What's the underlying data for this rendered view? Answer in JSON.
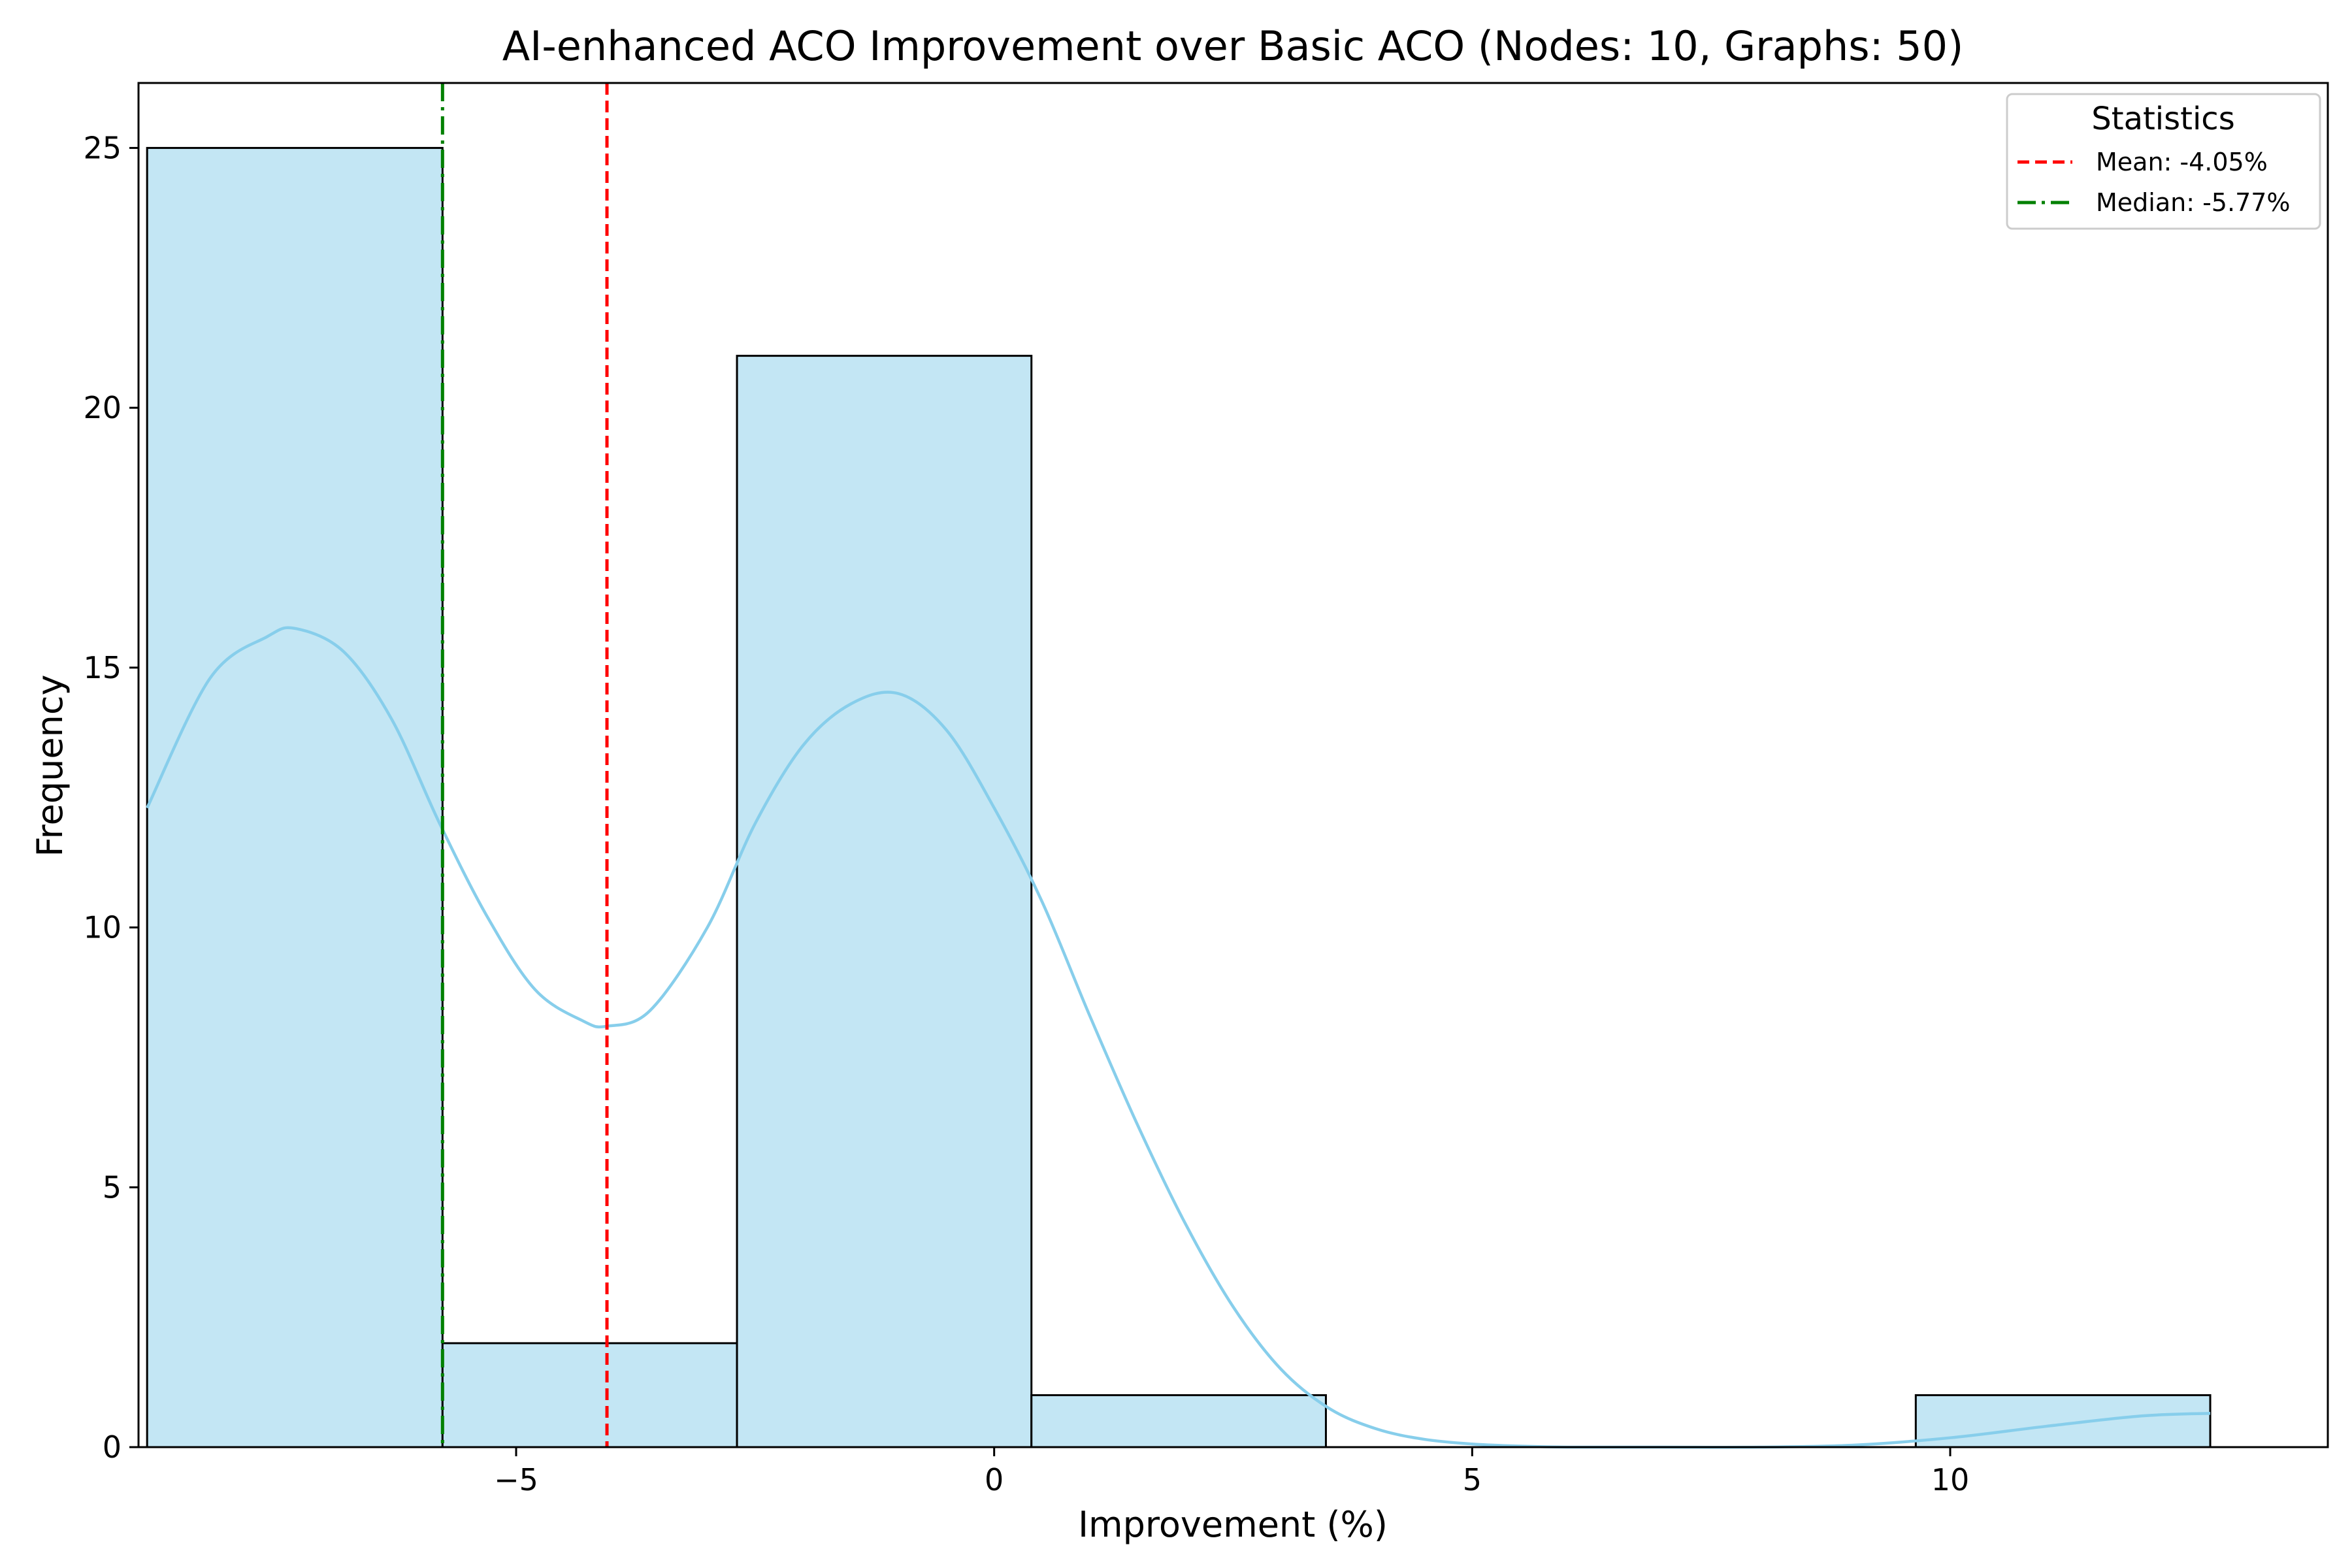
{
  "chart_data": {
    "type": "bar",
    "title": "AI-enhanced ACO Improvement over Basic ACO (Nodes: 10, Graphs: 50)",
    "xlabel": "Improvement (%)",
    "ylabel": "Frequency",
    "xlim": [
      -8.95,
      13.95
    ],
    "ylim": [
      0,
      26.25
    ],
    "xticks": [
      {
        "value": -5,
        "label": "−5"
      },
      {
        "value": 0,
        "label": "0"
      },
      {
        "value": 5,
        "label": "5"
      },
      {
        "value": 10,
        "label": "10"
      }
    ],
    "yticks": [
      {
        "value": 0,
        "label": "0"
      },
      {
        "value": 5,
        "label": "5"
      },
      {
        "value": 10,
        "label": "10"
      },
      {
        "value": 15,
        "label": "15"
      },
      {
        "value": 20,
        "label": "20"
      },
      {
        "value": 25,
        "label": "25"
      }
    ],
    "bins": [
      {
        "x0": -8.86,
        "x1": -5.77,
        "count": 25
      },
      {
        "x0": -5.77,
        "x1": -2.69,
        "count": 2
      },
      {
        "x0": -2.69,
        "x1": 0.39,
        "count": 21
      },
      {
        "x0": 0.39,
        "x1": 3.47,
        "count": 1
      },
      {
        "x0": 3.47,
        "x1": 6.56,
        "count": 0
      },
      {
        "x0": 6.56,
        "x1": 9.64,
        "count": 0
      },
      {
        "x0": 9.64,
        "x1": 12.72,
        "count": 1
      }
    ],
    "kde": {
      "x": [
        -8.86,
        -8.2,
        -7.6,
        -7.3,
        -6.8,
        -6.3,
        -5.8,
        -5.3,
        -4.8,
        -4.3,
        -4.05,
        -3.6,
        -3.0,
        -2.5,
        -2.0,
        -1.5,
        -1.0,
        -0.5,
        0.0,
        0.5,
        1.0,
        1.5,
        2.0,
        2.5,
        3.0,
        3.5,
        4.0,
        4.5,
        5.0,
        5.5,
        6.0,
        7.0,
        8.0,
        9.0,
        10.0,
        11.0,
        12.0,
        12.72
      ],
      "y": [
        12.3,
        14.8,
        15.6,
        15.75,
        15.3,
        14.0,
        12.0,
        10.2,
        8.8,
        8.2,
        8.1,
        8.4,
        10.0,
        12.0,
        13.5,
        14.3,
        14.5,
        13.8,
        12.3,
        10.5,
        8.3,
        6.2,
        4.3,
        2.7,
        1.5,
        0.75,
        0.35,
        0.15,
        0.06,
        0.02,
        0.0,
        0.0,
        0.0,
        0.04,
        0.18,
        0.4,
        0.6,
        0.65
      ]
    },
    "lines": [
      {
        "name": "Mean: -4.05%",
        "x": -4.05,
        "color": "#ff0000",
        "style": "dashed"
      },
      {
        "name": "Median: -5.77%",
        "x": -5.77,
        "color": "#008000",
        "style": "dashdot"
      }
    ],
    "legend": {
      "title": "Statistics",
      "position": "top-right"
    },
    "colors": {
      "bar_fill": "#c3e6f4",
      "bar_edge": "#000000",
      "kde_line": "#87ceeb"
    }
  }
}
